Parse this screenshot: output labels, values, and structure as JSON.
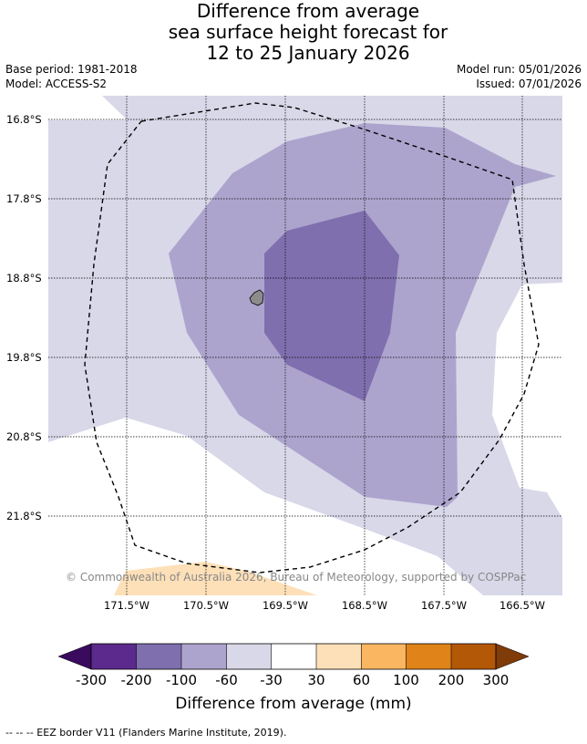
{
  "title": {
    "line1": "Difference from average",
    "line2": "sea surface height forecast for",
    "line3": "12 to 25 January 2026"
  },
  "meta": {
    "base_period": "Base period: 1981-2018",
    "model": "Model: ACCESS-S2",
    "model_run": "Model run: 05/01/2026",
    "issued": "Issued: 07/01/2026"
  },
  "latitudes": [
    "16.8°S",
    "17.8°S",
    "18.8°S",
    "19.8°S",
    "20.8°S",
    "21.8°S"
  ],
  "longitudes": [
    "171.5°W",
    "170.5°W",
    "169.5°W",
    "168.5°W",
    "167.5°W",
    "166.5°W"
  ],
  "copyright": "© Commonwealth of Australia 2026, Bureau of Meteorology, supported by COSPPac",
  "colorbar": {
    "labels": [
      "-300",
      "-200",
      "-100",
      "-60",
      "-30",
      "30",
      "60",
      "100",
      "200",
      "300"
    ],
    "colors": [
      "#3a0a5e",
      "#5b2a8c",
      "#7f6fae",
      "#ada4cd",
      "#d8d8e9",
      "#ffffff",
      "#fde0b8",
      "#fbb661",
      "#e08318",
      "#b35807",
      "#7f3b08"
    ],
    "title": "Difference from average (mm)"
  },
  "footnote": "--  --  -- EEZ border V11 (Flanders Marine Institute, 2019)."
}
